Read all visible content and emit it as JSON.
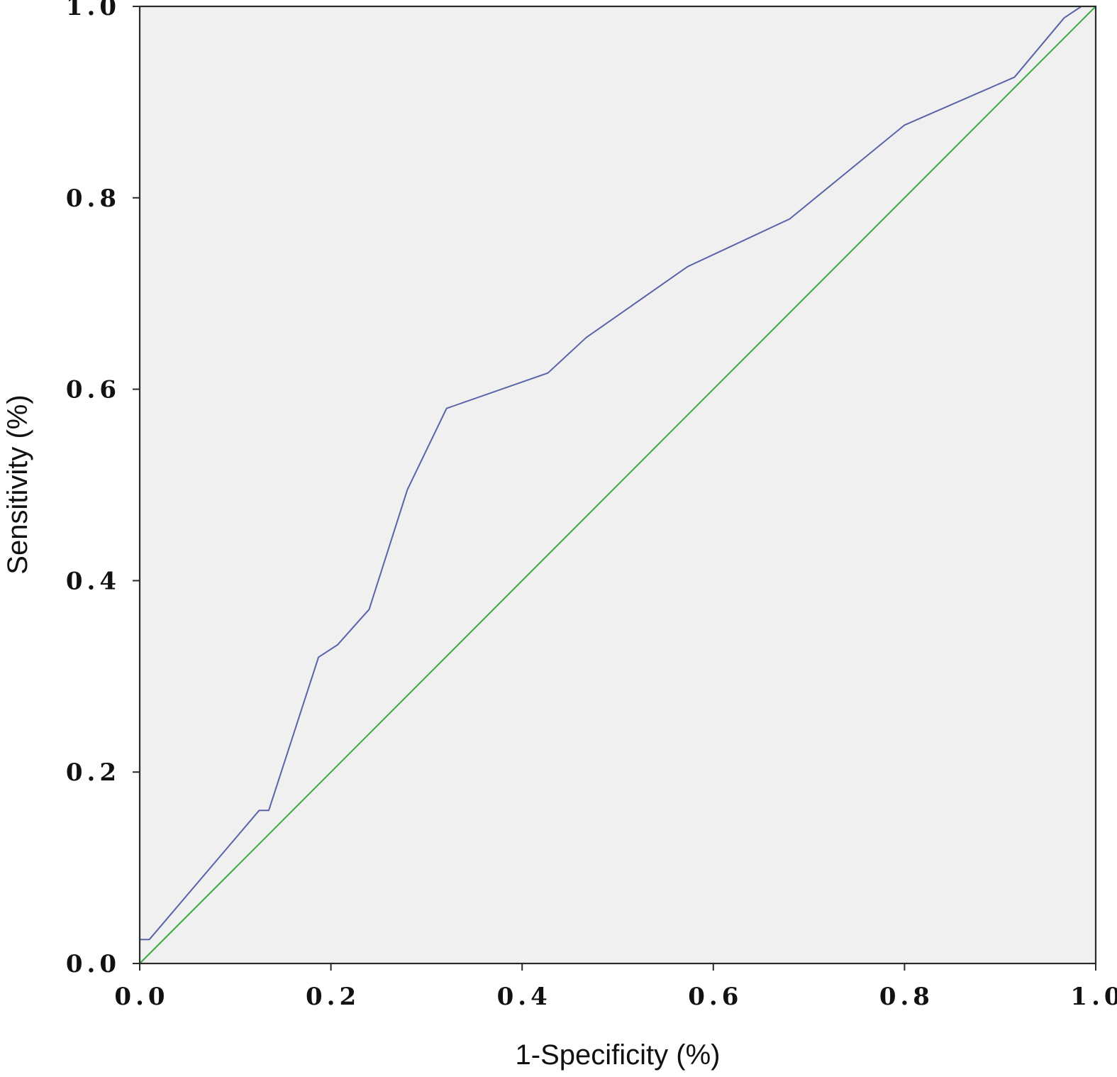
{
  "chart_data": {
    "type": "line",
    "title": "",
    "xlabel": "1-Specificity (%)",
    "ylabel": "Sensitivity (%)",
    "xlim": [
      0,
      1
    ],
    "ylim": [
      0,
      1
    ],
    "grid": false,
    "legend": "none",
    "plot_background": "#f0f0f0",
    "x_ticks": [
      0.0,
      0.2,
      0.4,
      0.6,
      0.8,
      1.0
    ],
    "y_ticks": [
      0.0,
      0.2,
      0.4,
      0.6,
      0.8,
      1.0
    ],
    "x_tick_labels": [
      "0.0",
      "0.2",
      "0.4",
      "0.6",
      "0.8",
      "1.0"
    ],
    "y_tick_labels": [
      "0.0",
      "0.2",
      "0.4",
      "0.6",
      "0.8",
      "1.0"
    ],
    "series": [
      {
        "color": "#5a63a8",
        "points": [
          [
            0.0,
            0.025
          ],
          [
            0.01,
            0.025
          ],
          [
            0.125,
            0.16
          ],
          [
            0.135,
            0.16
          ],
          [
            0.187,
            0.32
          ],
          [
            0.207,
            0.333
          ],
          [
            0.24,
            0.37
          ],
          [
            0.28,
            0.495
          ],
          [
            0.321,
            0.58
          ],
          [
            0.427,
            0.617
          ],
          [
            0.467,
            0.654
          ],
          [
            0.573,
            0.728
          ],
          [
            0.68,
            0.778
          ],
          [
            0.8,
            0.876
          ],
          [
            0.915,
            0.926
          ],
          [
            0.967,
            0.988
          ],
          [
            0.985,
            1.0
          ],
          [
            1.0,
            1.0
          ]
        ]
      },
      {
        "color": "#3aaa3a",
        "points": [
          [
            0.0,
            0.0
          ],
          [
            1.0,
            1.0
          ]
        ]
      }
    ]
  }
}
